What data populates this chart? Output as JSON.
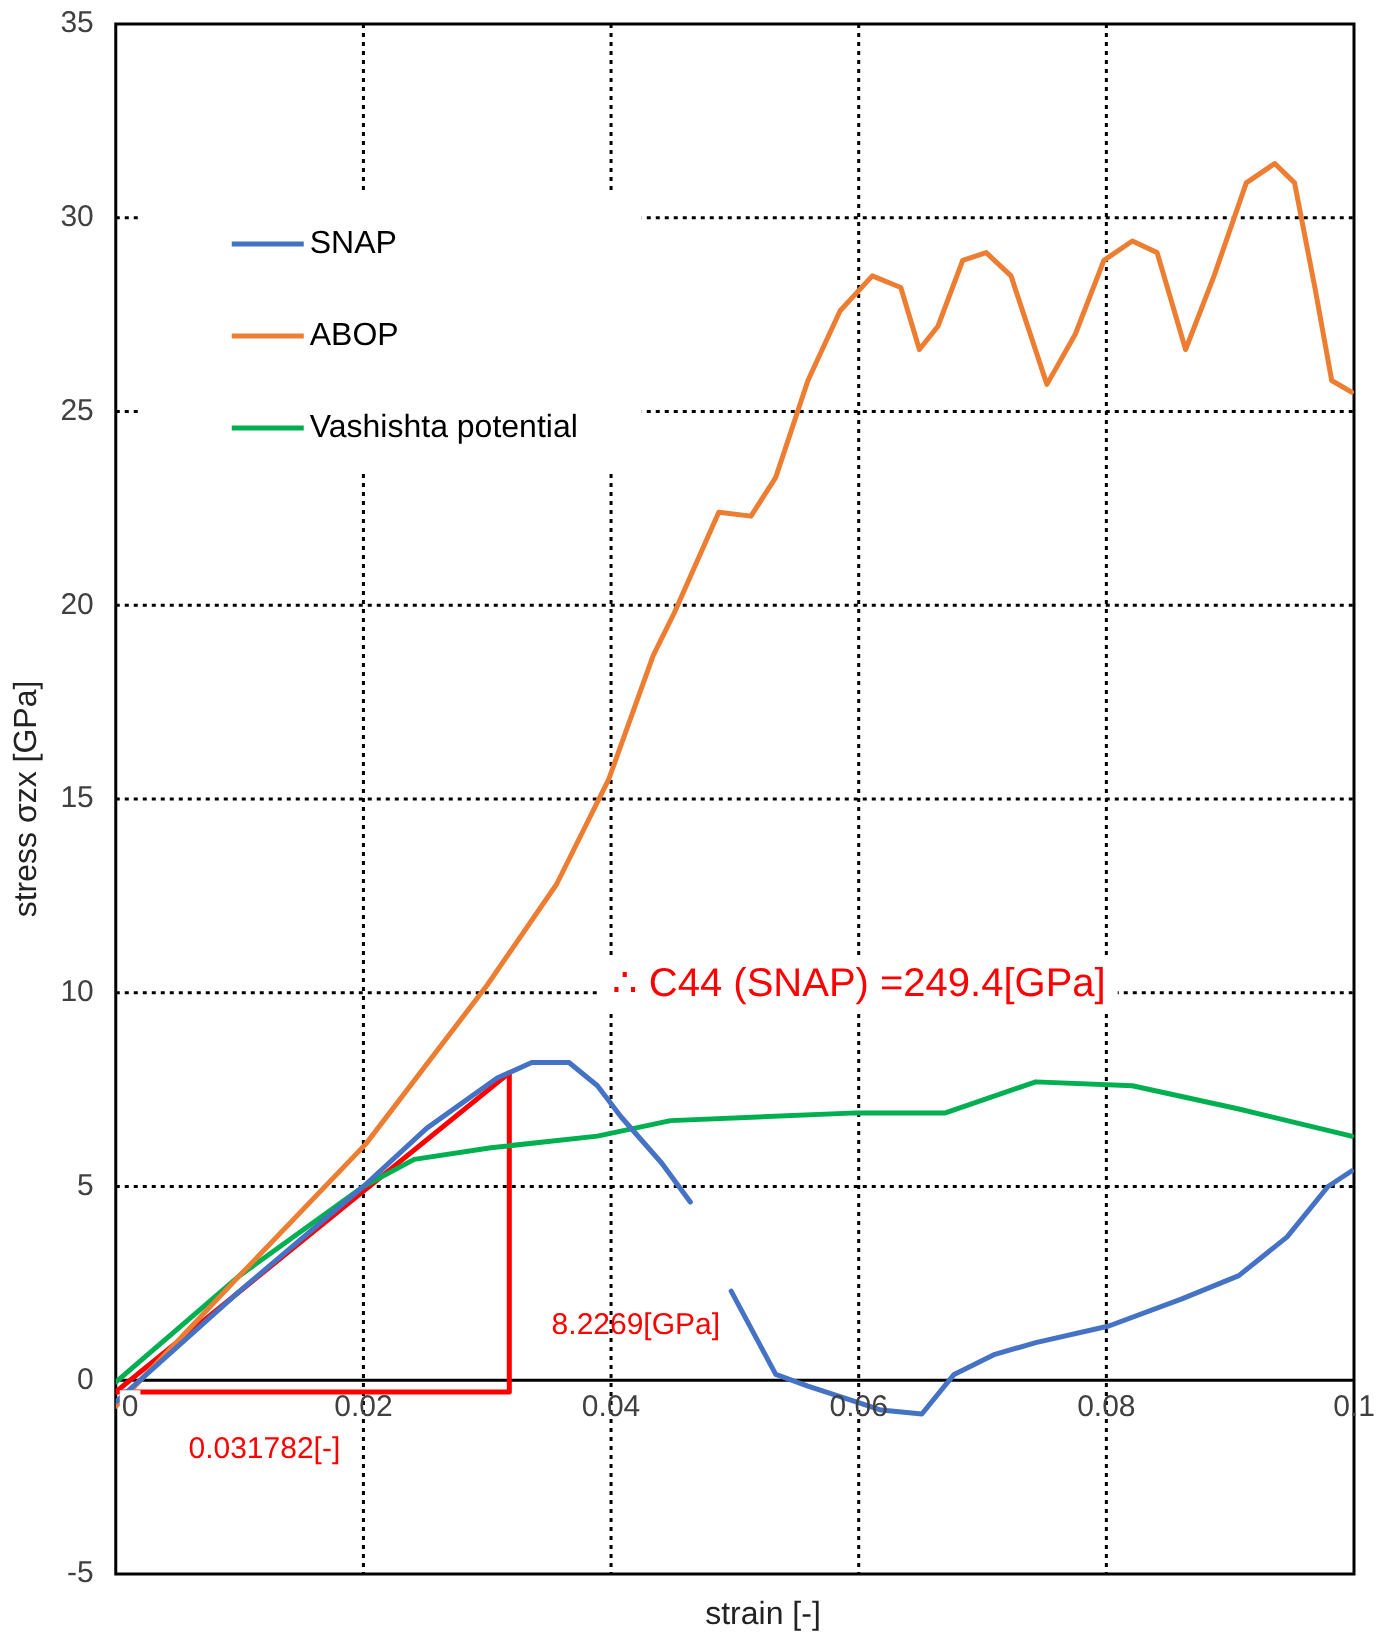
{
  "chart_data": {
    "type": "line",
    "xlabel": "strain [-]",
    "ylabel": "stress σzx [GPa]",
    "xlim": [
      0,
      0.1
    ],
    "ylim": [
      -5,
      35
    ],
    "xticks": [
      0,
      0.02,
      0.04,
      0.06,
      0.08,
      0.1
    ],
    "yticks": [
      -5,
      0,
      5,
      10,
      15,
      20,
      25,
      30,
      35
    ],
    "grid": true,
    "legend": "top left",
    "marker": "none",
    "line_style": "solid",
    "series": [
      {
        "name": "SNAP",
        "color": "#4472c4",
        "x": [
          0,
          0.01,
          0.02,
          0.0251,
          0.0308,
          0.0336,
          0.0366,
          0.0389,
          0.0408,
          0.0441,
          0.0464,
          0.048,
          0.0497,
          0.0533,
          0.0559,
          0.0598,
          0.0618,
          0.0651,
          0.0677,
          0.071,
          0.0743,
          0.0802,
          0.0861,
          0.0907,
          0.0946,
          0.0979,
          0.0998
        ],
        "values": [
          -0.56,
          2.3,
          5.0,
          6.5,
          7.8,
          8.2,
          8.2,
          7.6,
          6.8,
          5.6,
          4.6,
          null,
          2.3,
          0.15,
          -0.15,
          -0.56,
          -0.77,
          -0.87,
          0.15,
          0.67,
          0.97,
          1.4,
          2.1,
          2.7,
          3.7,
          5.0,
          5.4
        ]
      },
      {
        "name": "ABOP",
        "color": "#ed7d31",
        "x": [
          0,
          0.01,
          0.0202,
          0.03,
          0.0356,
          0.0398,
          0.0434,
          0.0451,
          0.0487,
          0.0513,
          0.0533,
          0.0559,
          0.0585,
          0.0611,
          0.0634,
          0.0649,
          0.0664,
          0.0684,
          0.0703,
          0.0723,
          0.0752,
          0.0775,
          0.0798,
          0.0821,
          0.0841,
          0.0864,
          0.0887,
          0.0913,
          0.0936,
          0.0952,
          0.0969,
          0.0982,
          0.0998
        ],
        "values": [
          -0.67,
          2.7,
          6.1,
          10.2,
          12.8,
          15.5,
          18.7,
          19.8,
          22.4,
          22.3,
          23.3,
          25.8,
          27.6,
          28.5,
          28.2,
          26.6,
          27.2,
          28.9,
          29.1,
          28.5,
          25.7,
          27.0,
          28.9,
          29.4,
          29.1,
          26.6,
          28.5,
          30.9,
          31.4,
          30.9,
          28.1,
          25.8,
          25.5
        ]
      },
      {
        "name": "Vashishta potential",
        "color": "#00b050",
        "x": [
          0,
          0.01,
          0.02,
          0.0241,
          0.0303,
          0.0389,
          0.0448,
          0.0598,
          0.067,
          0.0743,
          0.0821,
          0.0907,
          0.0998
        ],
        "values": [
          -0.05,
          2.7,
          5.0,
          5.7,
          6.0,
          6.3,
          6.7,
          6.9,
          6.9,
          7.7,
          7.6,
          7.0,
          6.3
        ]
      },
      {
        "color": "#ff0000",
        "x": [
          0,
          0.031782
        ],
        "values": [
          -0.3,
          7.93
        ]
      },
      {
        "color": "#ff0000",
        "x": [
          0,
          0.031782,
          0.031782
        ],
        "values": [
          -0.3,
          -0.3,
          7.93
        ]
      }
    ],
    "annotations": [
      "∴ C44 (SNAP) =249.4[GPa]",
      "8.2269[GPa]",
      "0.031782[-]"
    ]
  }
}
